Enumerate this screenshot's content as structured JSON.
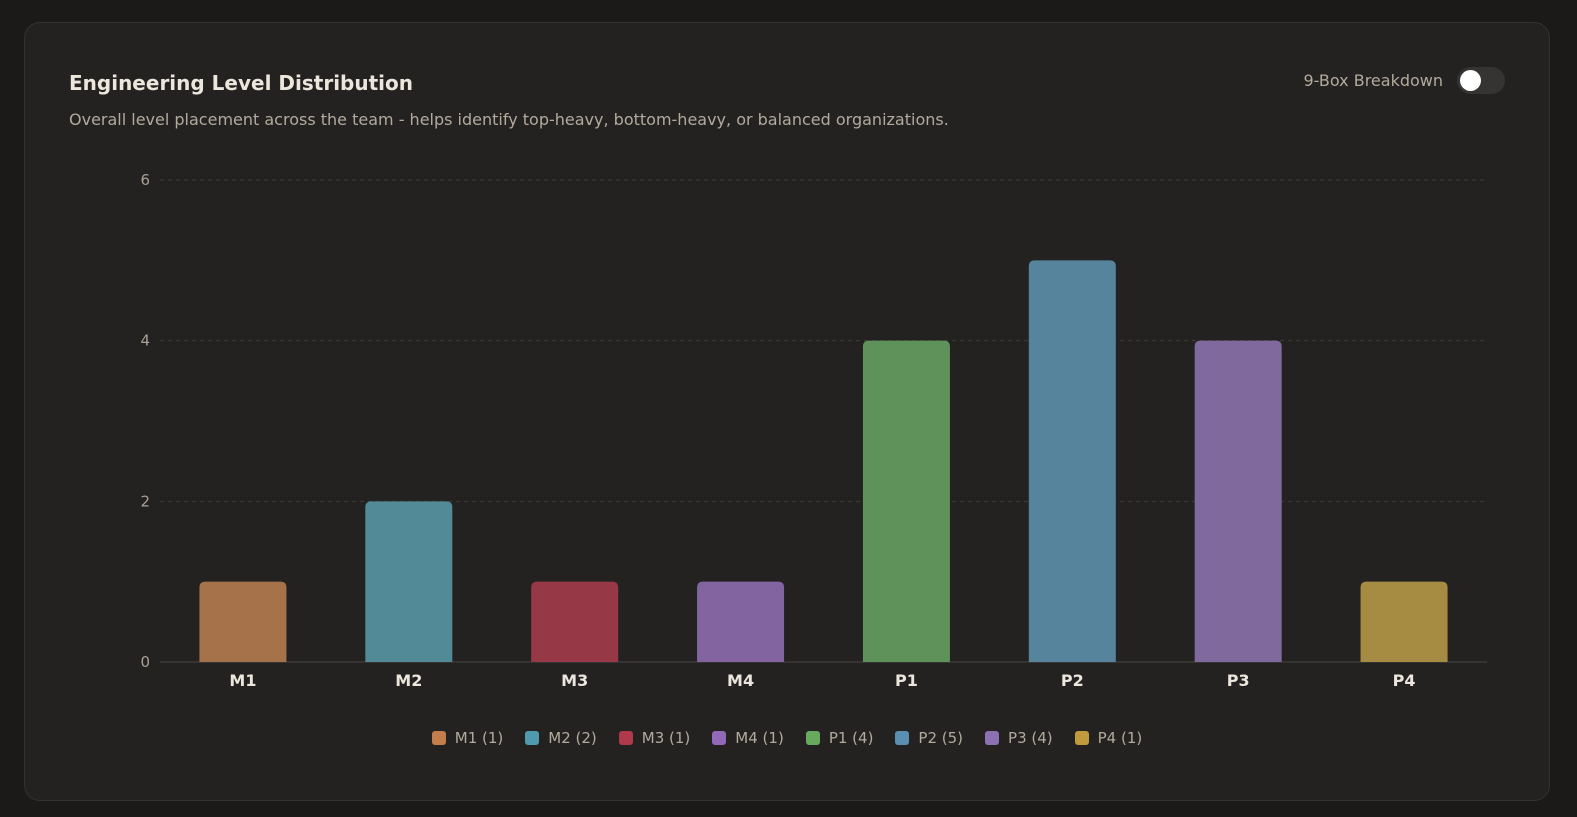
{
  "header": {
    "title": "Engineering Level Distribution",
    "subtitle": "Overall level placement across the team - helps identify top-heavy, bottom-heavy, or balanced organizations."
  },
  "toggle": {
    "label": "9-Box Breakdown",
    "checked": false
  },
  "chart_data": {
    "type": "bar",
    "categories": [
      "M1",
      "M2",
      "M3",
      "M4",
      "P1",
      "P2",
      "P3",
      "P4"
    ],
    "values": [
      1,
      2,
      1,
      1,
      4,
      5,
      4,
      1
    ],
    "colors": [
      "#a57249",
      "#528a98",
      "#973846",
      "#8264a0",
      "#5f915a",
      "#56849c",
      "#806a9d",
      "#a58c42"
    ],
    "title": "Engineering Level Distribution",
    "xlabel": "",
    "ylabel": "",
    "ylim": [
      0,
      6
    ],
    "yticks": [
      0,
      2,
      4,
      6
    ],
    "grid": true,
    "legend": {
      "position": "bottom",
      "entries": [
        {
          "label": "M1 (1)",
          "color": "#c27f4c"
        },
        {
          "label": "M2 (2)",
          "color": "#4f9aaf"
        },
        {
          "label": "M3 (1)",
          "color": "#b03a4c"
        },
        {
          "label": "M4 (1)",
          "color": "#9269b8"
        },
        {
          "label": "P1 (4)",
          "color": "#66a95f"
        },
        {
          "label": "P2 (5)",
          "color": "#5a8fb2"
        },
        {
          "label": "P3 (4)",
          "color": "#8d70b2"
        },
        {
          "label": "P4 (1)",
          "color": "#c09a3c"
        }
      ]
    }
  }
}
